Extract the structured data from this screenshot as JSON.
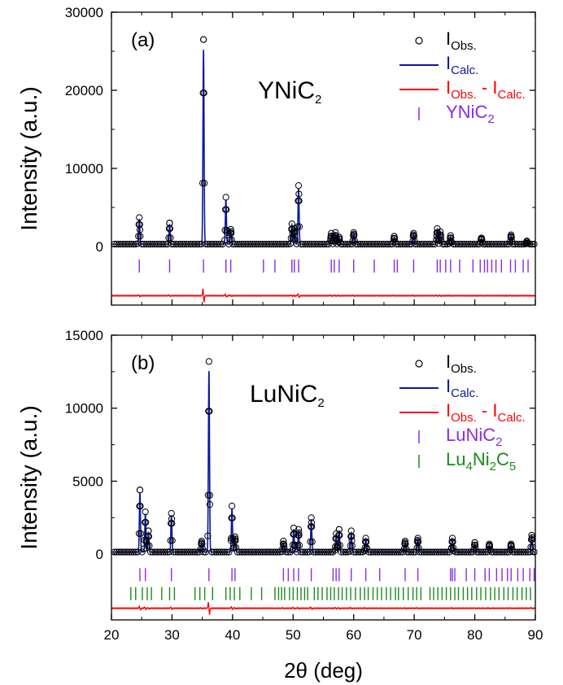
{
  "colors": {
    "observed": "#000000",
    "calculated": "#0a1a9c",
    "difference": "#ff0000",
    "phase1": "#8a2be2",
    "phase2": "#1a8a1a",
    "axis": "#000000"
  },
  "chart_data": [
    {
      "type": "line",
      "panel_label": "(a)",
      "compound_base": "YNiC",
      "compound_sub": "2",
      "xlabel_main": "2",
      "xlabel_theta": "θ",
      "xlabel_unit": " (deg)",
      "ylabel": "Intensity (a.u.)",
      "xlim": [
        20,
        90
      ],
      "ylim": [
        -7500,
        30000
      ],
      "yticks": [
        0,
        10000,
        20000,
        30000
      ],
      "ytick_labels": [
        "0",
        "10000",
        "20000",
        "30000"
      ],
      "xticks": [
        20,
        30,
        40,
        50,
        60,
        70,
        80,
        90
      ],
      "xtick_labels": [],
      "background": 300,
      "difference_offset": -6300,
      "peaks": [
        {
          "x": 24.6,
          "y": 3700
        },
        {
          "x": 29.6,
          "y": 3000
        },
        {
          "x": 35.2,
          "y": 26500
        },
        {
          "x": 38.9,
          "y": 6300
        },
        {
          "x": 39.7,
          "y": 2200
        },
        {
          "x": 49.8,
          "y": 2900
        },
        {
          "x": 50.2,
          "y": 2300
        },
        {
          "x": 50.9,
          "y": 7800
        },
        {
          "x": 56.3,
          "y": 1700
        },
        {
          "x": 57.0,
          "y": 1800
        },
        {
          "x": 57.6,
          "y": 1200
        },
        {
          "x": 60.0,
          "y": 1800
        },
        {
          "x": 66.7,
          "y": 1300
        },
        {
          "x": 69.9,
          "y": 1700
        },
        {
          "x": 73.8,
          "y": 2300
        },
        {
          "x": 74.3,
          "y": 1900
        },
        {
          "x": 76.0,
          "y": 1400
        },
        {
          "x": 81.1,
          "y": 1100
        },
        {
          "x": 86.0,
          "y": 1500
        },
        {
          "x": 88.6,
          "y": 700
        }
      ],
      "tick_rows": [
        {
          "name": "YNiC2",
          "offset": -2500,
          "color_key": "phase1",
          "positions": [
            24.6,
            29.6,
            35.2,
            38.9,
            39.7,
            45.1,
            47.0,
            49.8,
            50.2,
            50.9,
            56.3,
            56.8,
            57.6,
            60.0,
            63.4,
            66.7,
            67.2,
            69.9,
            73.8,
            74.3,
            75.2,
            76.0,
            77.5,
            79.7,
            80.9,
            81.6,
            82.1,
            82.8,
            83.5,
            84.4,
            85.9,
            86.7,
            88.0,
            88.8
          ]
        }
      ],
      "legend": [
        {
          "kind": "circle",
          "base": "I",
          "sub": "Obs.",
          "tail": "",
          "tail_sub": ""
        },
        {
          "kind": "line",
          "color_key": "calculated",
          "base": "I",
          "sub": "Calc.",
          "tail": "",
          "tail_sub": ""
        },
        {
          "kind": "line",
          "color_key": "difference",
          "base": "I",
          "sub": "Obs.",
          "tail": " - I",
          "tail_sub": "Calc."
        },
        {
          "kind": "tick",
          "color_key": "phase1",
          "formula": [
            [
              "YNiC",
              ""
            ],
            [
              "2",
              "sub"
            ]
          ]
        }
      ]
    },
    {
      "type": "line",
      "panel_label": "(b)",
      "compound_base": "LuNiC",
      "compound_sub": "2",
      "xlabel_main": "2",
      "xlabel_theta": "θ",
      "xlabel_unit": " (deg)",
      "ylabel": "Intensity (a.u.)",
      "xlim": [
        20,
        90
      ],
      "ylim": [
        -4500,
        15000
      ],
      "yticks": [
        0,
        5000,
        10000,
        15000
      ],
      "ytick_labels": [
        "0",
        "5000",
        "10000",
        "15000"
      ],
      "xticks": [
        20,
        30,
        40,
        50,
        60,
        70,
        80,
        90
      ],
      "xtick_labels": [
        "20",
        "30",
        "40",
        "50",
        "60",
        "70",
        "80",
        "90"
      ],
      "background": 150,
      "difference_offset": -3700,
      "peaks": [
        {
          "x": 24.7,
          "y": 4400
        },
        {
          "x": 25.6,
          "y": 2900
        },
        {
          "x": 26.1,
          "y": 1600
        },
        {
          "x": 29.9,
          "y": 2800
        },
        {
          "x": 34.9,
          "y": 900
        },
        {
          "x": 36.1,
          "y": 13200
        },
        {
          "x": 39.9,
          "y": 3300
        },
        {
          "x": 40.4,
          "y": 1200
        },
        {
          "x": 48.4,
          "y": 900
        },
        {
          "x": 50.1,
          "y": 1800
        },
        {
          "x": 50.9,
          "y": 1700
        },
        {
          "x": 53.0,
          "y": 2500
        },
        {
          "x": 57.1,
          "y": 1400
        },
        {
          "x": 57.6,
          "y": 1700
        },
        {
          "x": 59.6,
          "y": 1600
        },
        {
          "x": 62.0,
          "y": 1100
        },
        {
          "x": 68.5,
          "y": 900
        },
        {
          "x": 70.6,
          "y": 1100
        },
        {
          "x": 76.3,
          "y": 1100
        },
        {
          "x": 80.0,
          "y": 800
        },
        {
          "x": 82.4,
          "y": 700
        },
        {
          "x": 86.0,
          "y": 700
        },
        {
          "x": 89.4,
          "y": 1300
        }
      ],
      "tick_rows": [
        {
          "name": "LuNiC2",
          "offset": -1400,
          "color_key": "phase1",
          "positions": [
            24.7,
            25.6,
            29.9,
            36.1,
            39.9,
            40.4,
            48.4,
            49.2,
            50.1,
            50.9,
            53.0,
            56.6,
            57.1,
            57.6,
            59.6,
            62.0,
            64.3,
            68.5,
            70.6,
            76.0,
            76.3,
            76.7,
            78.6,
            80.0,
            81.7,
            82.4,
            83.6,
            84.5,
            85.4,
            86.0,
            87.1,
            88.0,
            89.1,
            89.8
          ]
        },
        {
          "name": "Lu4Ni2C5",
          "offset": -2700,
          "color_key": "phase2",
          "positions": [
            23.2,
            24.0,
            25.1,
            25.9,
            26.6,
            28.3,
            29.6,
            30.4,
            33.8,
            34.6,
            35.4,
            36.7,
            38.9,
            39.6,
            40.3,
            41.2,
            43.1,
            44.8,
            47.0,
            47.6,
            48.1,
            48.6,
            49.4,
            50.0,
            50.7,
            51.3,
            51.9,
            52.4,
            53.5,
            54.1,
            54.8,
            55.6,
            56.2,
            56.8,
            57.5,
            58.1,
            58.8,
            59.5,
            60.3,
            61.1,
            61.8,
            62.4,
            63.2,
            63.9,
            64.6,
            65.4,
            66.1,
            66.9,
            67.4,
            68.2,
            69.0,
            69.8,
            70.4,
            71.1,
            72.6,
            73.2,
            73.9,
            74.6,
            75.3,
            76.0,
            76.7,
            77.3,
            78.1,
            78.8,
            79.5,
            80.3,
            81.0,
            81.8,
            82.6,
            83.3,
            84.0,
            84.8,
            85.5,
            86.3,
            87.0,
            87.8,
            88.5,
            89.2
          ]
        }
      ],
      "legend": [
        {
          "kind": "circle",
          "base": "I",
          "sub": "Obs.",
          "tail": "",
          "tail_sub": ""
        },
        {
          "kind": "line",
          "color_key": "calculated",
          "base": "I",
          "sub": "Calc.",
          "tail": "",
          "tail_sub": ""
        },
        {
          "kind": "line",
          "color_key": "difference",
          "base": "I",
          "sub": "Obs.",
          "tail": " - I",
          "tail_sub": "Calc."
        },
        {
          "kind": "tick",
          "color_key": "phase1",
          "formula": [
            [
              "LuNiC",
              ""
            ],
            [
              "2",
              "sub"
            ]
          ]
        },
        {
          "kind": "tick",
          "color_key": "phase2",
          "formula": [
            [
              "Lu",
              ""
            ],
            [
              "4",
              "sub"
            ],
            [
              "Ni",
              ""
            ],
            [
              "2",
              "sub"
            ],
            [
              "C",
              ""
            ],
            [
              "5",
              "sub"
            ]
          ]
        }
      ]
    }
  ]
}
